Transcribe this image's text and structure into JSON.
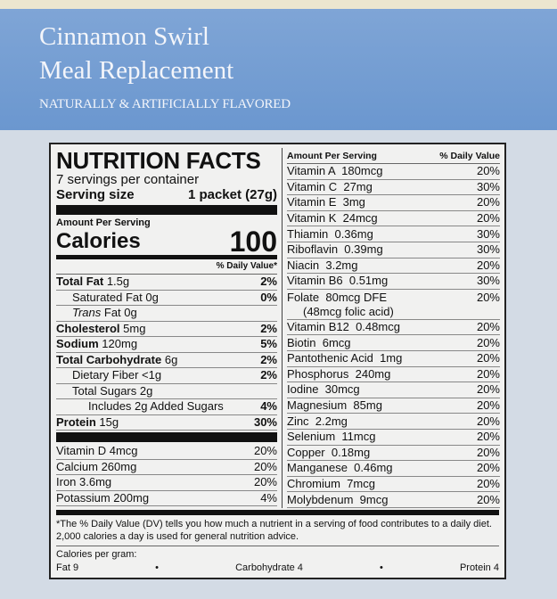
{
  "product": {
    "name_line1": "Cinnamon Swirl",
    "name_line2": "Meal Replacement",
    "flavor": "NATURALLY & ARTIFICIALLY FLAVORED"
  },
  "colors": {
    "band": "#6b97cf",
    "background": "#d3dbe5",
    "label": "#f1f1f0"
  },
  "label": {
    "title": "NUTRITION FACTS",
    "servings": "7 servings per container",
    "serving_size_label": "Serving size",
    "serving_size_value": "1 packet (27g)",
    "amount_per_serving": "Amount Per Serving",
    "calories_label": "Calories",
    "calories_value": "100",
    "dv_header": "% Daily Value*",
    "left_rows": [
      {
        "name": "Total Fat",
        "amount": "1.5g",
        "dv": "2%",
        "bold": true,
        "indent": 0
      },
      {
        "name": "Saturated Fat",
        "amount": "0g",
        "dv": "0%",
        "bold": false,
        "indent": 1
      },
      {
        "name": "Trans",
        "amount": "Fat 0g",
        "dv": "",
        "bold": false,
        "indent": 1,
        "italic": true
      },
      {
        "name": "Cholesterol",
        "amount": "5mg",
        "dv": "2%",
        "bold": true,
        "indent": 0
      },
      {
        "name": "Sodium",
        "amount": "120mg",
        "dv": "5%",
        "bold": true,
        "indent": 0
      },
      {
        "name": "Total Carbohydrate",
        "amount": "6g",
        "dv": "2%",
        "bold": true,
        "indent": 0
      },
      {
        "name": "Dietary Fiber",
        "amount": "<1g",
        "dv": "2%",
        "bold": false,
        "indent": 1
      },
      {
        "name": "Total Sugars",
        "amount": "2g",
        "dv": "",
        "bold": false,
        "indent": 1
      },
      {
        "name": "Includes 2g Added Sugars",
        "amount": "",
        "dv": "4%",
        "bold": false,
        "indent": 2
      },
      {
        "name": "Protein",
        "amount": "15g",
        "dv": "30%",
        "bold": true,
        "indent": 0
      }
    ],
    "vitamins_left": [
      {
        "name": "Vitamin D 4mcg",
        "dv": "20%"
      },
      {
        "name": "Calcium 260mg",
        "dv": "20%"
      },
      {
        "name": "Iron 3.6mg",
        "dv": "20%"
      },
      {
        "name": "Potassium 200mg",
        "dv": "4%"
      }
    ],
    "right_header": {
      "amount": "Amount Per Serving",
      "dv": "% Daily Value"
    },
    "right_rows": [
      {
        "name": "Vitamin A  180mcg",
        "dv": "20%"
      },
      {
        "name": "Vitamin C  27mg",
        "dv": "30%"
      },
      {
        "name": "Vitamin E  3mg",
        "dv": "20%"
      },
      {
        "name": "Vitamin K  24mcg",
        "dv": "20%"
      },
      {
        "name": "Thiamin  0.36mg",
        "dv": "30%"
      },
      {
        "name": "Riboflavin  0.39mg",
        "dv": "30%"
      },
      {
        "name": "Niacin  3.2mg",
        "dv": "20%"
      },
      {
        "name": "Vitamin B6  0.51mg",
        "dv": "30%"
      },
      {
        "name": "Folate  80mcg DFE",
        "sub": "(48mcg folic acid)",
        "dv": "20%"
      },
      {
        "name": "Vitamin B12  0.48mcg",
        "dv": "20%"
      },
      {
        "name": "Biotin  6mcg",
        "dv": "20%"
      },
      {
        "name": "Pantothenic Acid  1mg",
        "dv": "20%"
      },
      {
        "name": "Phosphorus  240mg",
        "dv": "20%"
      },
      {
        "name": "Iodine  30mcg",
        "dv": "20%"
      },
      {
        "name": "Magnesium  85mg",
        "dv": "20%"
      },
      {
        "name": "Zinc  2.2mg",
        "dv": "20%"
      },
      {
        "name": "Selenium  11mcg",
        "dv": "20%"
      },
      {
        "name": "Copper  0.18mg",
        "dv": "20%"
      },
      {
        "name": "Manganese  0.46mg",
        "dv": "20%"
      },
      {
        "name": "Chromium  7mcg",
        "dv": "20%"
      },
      {
        "name": "Molybdenum  9mcg",
        "dv": "20%"
      }
    ],
    "footnote": "*The % Daily Value (DV) tells you how much a nutrient in a serving of food contributes to a daily diet. 2,000 calories a day is used for general nutrition advice.",
    "calories_per_gram": {
      "label": "Calories per gram:",
      "fat": "Fat 9",
      "carb": "Carbohydrate 4",
      "protein": "Protein 4",
      "bullet": "•"
    }
  }
}
